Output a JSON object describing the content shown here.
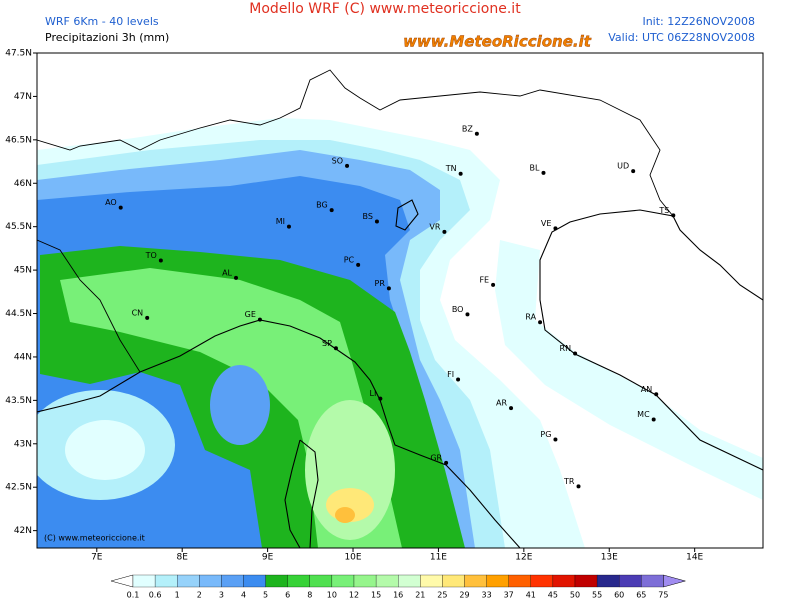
{
  "header": {
    "title": "Modello WRF (C) www.meteoriccione.it",
    "model": "WRF 6Km - 40 levels",
    "field": "Precipitazioni 3h (mm)",
    "init": "Init: 12Z26NOV2008",
    "valid": "Valid: UTC 06Z28NOV2008",
    "logo": "www.MeteoRiccione.it"
  },
  "map": {
    "lon_range": [
      6.3,
      14.8
    ],
    "lat_range": [
      41.8,
      47.5
    ],
    "lon_ticks": [
      {
        "value": 7,
        "label": "7E"
      },
      {
        "value": 8,
        "label": "8E"
      },
      {
        "value": 9,
        "label": "9E"
      },
      {
        "value": 10,
        "label": "10E"
      },
      {
        "value": 11,
        "label": "11E"
      },
      {
        "value": 12,
        "label": "12E"
      },
      {
        "value": 13,
        "label": "13E"
      },
      {
        "value": 14,
        "label": "14E"
      }
    ],
    "lat_ticks": [
      {
        "value": 47.5,
        "label": "47.5N"
      },
      {
        "value": 47,
        "label": "47N"
      },
      {
        "value": 46.5,
        "label": "46.5N"
      },
      {
        "value": 46,
        "label": "46N"
      },
      {
        "value": 45.5,
        "label": "45.5N"
      },
      {
        "value": 45,
        "label": "45N"
      },
      {
        "value": 44.5,
        "label": "44.5N"
      },
      {
        "value": 44,
        "label": "44N"
      },
      {
        "value": 43.5,
        "label": "43.5N"
      },
      {
        "value": 43,
        "label": "43N"
      },
      {
        "value": 42.5,
        "label": "42.5N"
      },
      {
        "value": 42,
        "label": "42N"
      }
    ],
    "cities": [
      {
        "name": "BZ",
        "lon": 11.45,
        "lat": 46.57
      },
      {
        "name": "SO",
        "lon": 9.93,
        "lat": 46.2
      },
      {
        "name": "TN",
        "lon": 11.26,
        "lat": 46.11
      },
      {
        "name": "BL",
        "lon": 12.23,
        "lat": 46.12
      },
      {
        "name": "UD",
        "lon": 13.28,
        "lat": 46.14
      },
      {
        "name": "AO",
        "lon": 7.28,
        "lat": 45.72
      },
      {
        "name": "BG",
        "lon": 9.75,
        "lat": 45.69
      },
      {
        "name": "MI",
        "lon": 9.25,
        "lat": 45.5
      },
      {
        "name": "BS",
        "lon": 10.28,
        "lat": 45.56
      },
      {
        "name": "VE",
        "lon": 12.37,
        "lat": 45.48
      },
      {
        "name": "TS",
        "lon": 13.75,
        "lat": 45.63
      },
      {
        "name": "VR",
        "lon": 11.07,
        "lat": 45.44
      },
      {
        "name": "TO",
        "lon": 7.75,
        "lat": 45.11
      },
      {
        "name": "PC",
        "lon": 10.06,
        "lat": 45.06
      },
      {
        "name": "AL",
        "lon": 8.63,
        "lat": 44.91
      },
      {
        "name": "FE",
        "lon": 11.64,
        "lat": 44.83
      },
      {
        "name": "PR",
        "lon": 10.42,
        "lat": 44.79
      },
      {
        "name": "CN",
        "lon": 7.59,
        "lat": 44.45
      },
      {
        "name": "GE",
        "lon": 8.91,
        "lat": 44.43
      },
      {
        "name": "BO",
        "lon": 11.34,
        "lat": 44.49
      },
      {
        "name": "RA",
        "lon": 12.19,
        "lat": 44.4
      },
      {
        "name": "SP",
        "lon": 9.8,
        "lat": 44.1
      },
      {
        "name": "RN",
        "lon": 12.6,
        "lat": 44.04
      },
      {
        "name": "FI",
        "lon": 11.23,
        "lat": 43.74
      },
      {
        "name": "AN",
        "lon": 13.55,
        "lat": 43.57
      },
      {
        "name": "LI",
        "lon": 10.32,
        "lat": 43.52
      },
      {
        "name": "AR",
        "lon": 11.85,
        "lat": 43.41
      },
      {
        "name": "MC",
        "lon": 13.52,
        "lat": 43.28
      },
      {
        "name": "PG",
        "lon": 12.37,
        "lat": 43.05
      },
      {
        "name": "GR",
        "lon": 11.09,
        "lat": 42.78
      },
      {
        "name": "TR",
        "lon": 12.64,
        "lat": 42.51
      }
    ],
    "copyright": "(C) www.meteoriccione.it"
  },
  "colorbar": {
    "levels": [
      0.1,
      0.6,
      1,
      2,
      3,
      4,
      5,
      6,
      8,
      10,
      12,
      15,
      16,
      21,
      25,
      29,
      33,
      37,
      41,
      45,
      50,
      55,
      60,
      65,
      75
    ],
    "under_color": "#ffffff",
    "over_color": "#a08cf0",
    "colors": [
      "#e1ffff",
      "#b4f0fa",
      "#96d2fa",
      "#78b9fa",
      "#5aa0f5",
      "#3c8cf0",
      "#1eb41e",
      "#37d237",
      "#50e050",
      "#78f078",
      "#96f58c",
      "#b4faaa",
      "#d2ffd2",
      "#fffaaa",
      "#ffe878",
      "#ffc03c",
      "#ffa000",
      "#ff6000",
      "#ff3200",
      "#e11400",
      "#c00000",
      "#28288c",
      "#4b3cb4",
      "#7d6ed7"
    ]
  }
}
